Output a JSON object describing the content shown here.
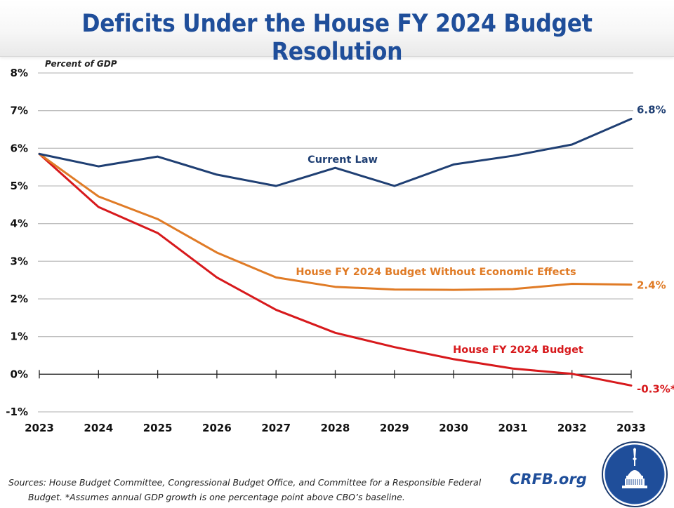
{
  "header": {
    "title": "Deficits Under the House FY 2024 Budget Resolution"
  },
  "chart_data": {
    "type": "line",
    "title": "Deficits Under the House FY 2024 Budget Resolution",
    "ylabel": "Percent of GDP",
    "xlabel": "",
    "ylim": [
      -1,
      8
    ],
    "yticks": [
      -1,
      0,
      1,
      2,
      3,
      4,
      5,
      6,
      7,
      8
    ],
    "ytick_labels": [
      "-1%",
      "0%",
      "1%",
      "2%",
      "3%",
      "4%",
      "5%",
      "6%",
      "7%",
      "8%"
    ],
    "x": [
      "2023",
      "2024",
      "2025",
      "2026",
      "2027",
      "2028",
      "2029",
      "2030",
      "2031",
      "2032",
      "2033"
    ],
    "grid": true,
    "legend": "inline labels",
    "series": [
      {
        "name": "Current Law",
        "color": "#1f3f73",
        "values": [
          5.85,
          5.52,
          5.78,
          5.3,
          5.0,
          5.48,
          5.0,
          5.57,
          5.8,
          6.1,
          6.78
        ],
        "end_label": "6.8%"
      },
      {
        "name": "House FY 2024 Budget Without Economic Effects",
        "color": "#e07b26",
        "values": [
          5.85,
          4.72,
          4.12,
          3.23,
          2.57,
          2.32,
          2.25,
          2.24,
          2.26,
          2.4,
          2.38
        ],
        "end_label": "2.4%"
      },
      {
        "name": "House FY 2024 Budget",
        "color": "#d7191c",
        "values": [
          5.85,
          4.44,
          3.75,
          2.57,
          1.71,
          1.1,
          0.72,
          0.4,
          0.15,
          0.01,
          -0.3
        ],
        "end_label": "-0.3%*"
      }
    ]
  },
  "footer": {
    "source_line1": "Sources: House Budget Committee, Congressional Budget Office, and Committee for a Responsible Federal",
    "source_line2": "Budget. *Assumes annual GDP growth is one percentage point above CBO’s baseline.",
    "brand": "CRFB.org",
    "logo_icon": "capitol-dome-seal-icon"
  }
}
